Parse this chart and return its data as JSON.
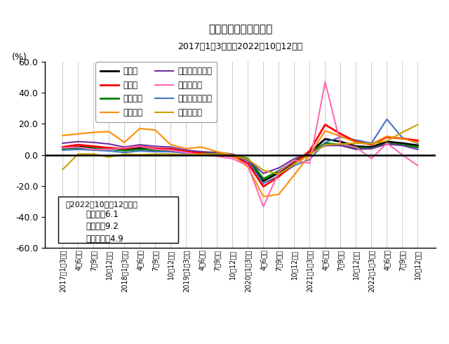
{
  "title": "売上高（前年同期比）",
  "subtitle": "2017年1～3月期～2022年10～12月期",
  "ylabel": "(%)",
  "ylim": [
    -60.0,
    60.0
  ],
  "yticks": [
    -60.0,
    -40.0,
    -20.0,
    0.0,
    20.0,
    40.0,
    60.0
  ],
  "annotation_title": "（2022年10月～12月期）",
  "annotation_lines": [
    "全産業：6.1",
    "製造業：9.2",
    "非製造業：4.9"
  ],
  "x_labels": [
    "2017年1～3月期",
    "4～6月期",
    "7～9月期",
    "10～12月期",
    "2018年1～3月期",
    "4～6月期",
    "7～9月期",
    "10～12月期",
    "2019年1～3月期",
    "4～6月期",
    "7～9月期",
    "10～12月期",
    "2020年1～3月期",
    "4～6月期",
    "7～9月期",
    "10～12月期",
    "2021年1～3月期",
    "4～6月期",
    "7～9月期",
    "10～12月期",
    "2022年1～3月期",
    "4～6月期",
    "7～9月期",
    "10～12月期"
  ],
  "series": [
    {
      "label": "全産業",
      "color": "#000000",
      "linewidth": 2.0,
      "values": [
        4.3,
        5.2,
        4.7,
        4.0,
        3.3,
        4.2,
        3.3,
        3.0,
        1.7,
        1.0,
        0.5,
        -0.4,
        -3.5,
        -17.0,
        -11.5,
        -4.5,
        1.5,
        10.2,
        8.5,
        5.5,
        5.0,
        8.5,
        7.5,
        6.1
      ]
    },
    {
      "label": "非製造業",
      "color": "#008000",
      "linewidth": 2.0,
      "values": [
        4.0,
        4.5,
        4.3,
        3.8,
        2.8,
        3.5,
        3.0,
        2.5,
        1.5,
        1.0,
        0.7,
        -0.2,
        -2.5,
        -15.5,
        -10.5,
        -4.0,
        1.2,
        7.5,
        6.5,
        4.5,
        4.2,
        7.0,
        6.5,
        4.9
      ]
    },
    {
      "label": "卸売業、小売業",
      "color": "#7030A0",
      "linewidth": 1.5,
      "values": [
        7.5,
        8.5,
        8.0,
        7.0,
        5.0,
        6.5,
        5.5,
        5.0,
        3.0,
        2.0,
        1.5,
        0.5,
        -3.5,
        -12.0,
        -8.5,
        -2.5,
        1.0,
        6.0,
        6.0,
        3.5,
        4.0,
        7.0,
        6.0,
        3.5
      ]
    },
    {
      "label": "運輸業、郵便業",
      "color": "#4472C4",
      "linewidth": 1.5,
      "values": [
        3.0,
        3.5,
        3.0,
        2.5,
        1.5,
        2.5,
        2.0,
        2.0,
        1.0,
        0.5,
        0.0,
        -1.0,
        -4.0,
        -18.5,
        -13.5,
        -7.0,
        -3.0,
        8.0,
        11.5,
        9.5,
        7.5,
        23.0,
        11.0,
        7.5
      ]
    },
    {
      "label": "製造業",
      "color": "#FF0000",
      "linewidth": 2.0,
      "values": [
        5.0,
        6.5,
        5.5,
        4.5,
        4.0,
        5.5,
        4.0,
        3.8,
        2.0,
        1.0,
        -0.5,
        -0.8,
        -5.5,
        -20.5,
        -14.0,
        -5.5,
        2.5,
        19.5,
        13.5,
        8.5,
        6.5,
        11.5,
        10.5,
        9.2
      ]
    },
    {
      "label": "金属製品",
      "color": "#FF8C00",
      "linewidth": 1.5,
      "values": [
        12.5,
        13.5,
        14.5,
        15.0,
        8.0,
        17.0,
        16.0,
        6.5,
        4.0,
        5.0,
        2.0,
        0.0,
        -8.0,
        -27.0,
        -25.5,
        -13.0,
        0.0,
        15.5,
        12.0,
        8.0,
        7.0,
        12.0,
        10.5,
        8.0
      ]
    },
    {
      "label": "輸送用機械",
      "color": "#FF69B4",
      "linewidth": 1.5,
      "values": [
        4.5,
        5.0,
        3.5,
        3.5,
        4.5,
        5.5,
        3.5,
        3.0,
        1.5,
        0.0,
        -1.0,
        -2.5,
        -7.0,
        -33.5,
        -11.0,
        -3.5,
        -5.5,
        47.0,
        7.0,
        5.0,
        -2.5,
        7.5,
        0.0,
        -7.0
      ]
    },
    {
      "label": "サービス業",
      "color": "#C8A000",
      "linewidth": 1.5,
      "values": [
        -9.5,
        0.5,
        0.5,
        -1.5,
        0.5,
        0.0,
        0.5,
        0.5,
        0.0,
        0.5,
        0.5,
        0.0,
        -3.0,
        -10.0,
        -12.5,
        -6.0,
        0.0,
        6.5,
        7.0,
        7.5,
        7.0,
        9.0,
        14.5,
        19.5
      ]
    }
  ],
  "legend_left": [
    "全産業",
    "非製造業",
    "卸売業、小売業",
    "運輸業、郵便業"
  ],
  "legend_right": [
    "製造業",
    "金属製品",
    "輸送用機械",
    "サービス業"
  ]
}
